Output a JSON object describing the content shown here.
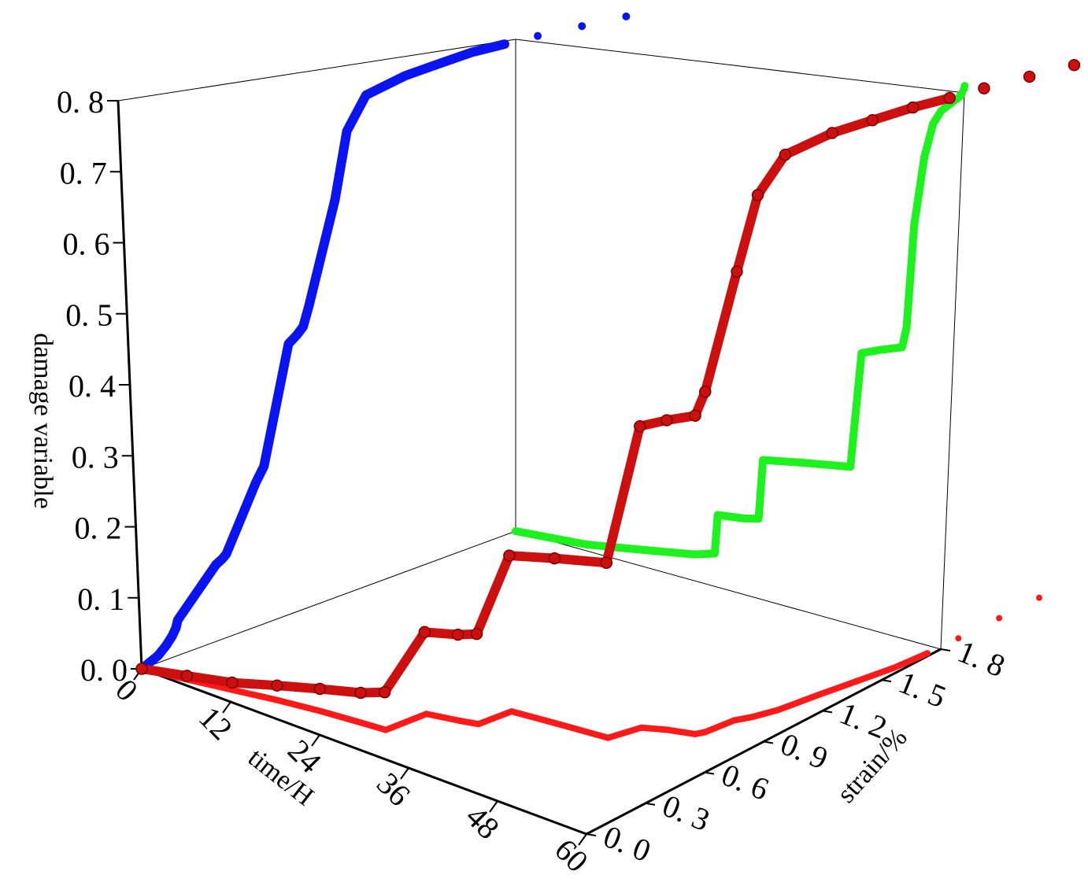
{
  "chart_data": {
    "type": "scatter3d",
    "x_label": "time/H",
    "y_label": "strain/%",
    "z_label": "damage variable",
    "x": [
      0,
      5,
      10,
      15,
      20,
      25,
      28,
      28.3,
      32,
      34,
      34.4,
      40,
      46.5,
      47.5,
      50,
      53,
      53.5,
      54,
      55,
      56,
      57,
      58,
      59,
      59.5,
      59.7,
      59.9,
      60
    ],
    "y": [
      0,
      0.04,
      0.08,
      0.12,
      0.15,
      0.17,
      0.18,
      0.37,
      0.4,
      0.42,
      0.57,
      0.59,
      0.61,
      0.74,
      0.78,
      0.81,
      0.84,
      0.97,
      1.03,
      1.12,
      1.3,
      1.45,
      1.6,
      1.75,
      1.9,
      2.1,
      2.3
    ],
    "z": [
      0,
      0.005,
      0.01,
      0.02,
      0.03,
      0.04,
      0.05,
      0.11,
      0.115,
      0.12,
      0.21,
      0.22,
      0.23,
      0.4,
      0.41,
      0.42,
      0.45,
      0.6,
      0.7,
      0.75,
      0.77,
      0.78,
      0.79,
      0.795,
      0.8,
      0.805,
      0.81
    ],
    "xlim": [
      0,
      60
    ],
    "ylim": [
      0,
      1.8
    ],
    "zlim": [
      0,
      0.8
    ],
    "xticks": [
      0,
      12,
      24,
      36,
      48,
      60
    ],
    "yticks": [
      {
        "value": 0,
        "label": "0. 0"
      },
      {
        "value": 0.3,
        "label": "0. 3"
      },
      {
        "value": 0.6,
        "label": "0. 6"
      },
      {
        "value": 0.9,
        "label": "0. 9"
      },
      {
        "value": 1.2,
        "label": "1. 2"
      },
      {
        "value": 1.5,
        "label": "1. 5"
      },
      {
        "value": 1.8,
        "label": "1. 8"
      }
    ],
    "zticks": [
      {
        "value": 0,
        "label": "0. 0"
      },
      {
        "value": 0.1,
        "label": "0. 1"
      },
      {
        "value": 0.2,
        "label": "0. 2"
      },
      {
        "value": 0.3,
        "label": "0. 3"
      },
      {
        "value": 0.4,
        "label": "0. 4"
      },
      {
        "value": 0.5,
        "label": "0. 5"
      },
      {
        "value": 0.6,
        "label": "0. 6"
      },
      {
        "value": 0.7,
        "label": "0. 7"
      },
      {
        "value": 0.8,
        "label": "0. 8"
      }
    ],
    "colors": {
      "curve": "#cc1010",
      "time_strain": "#ff1a1a",
      "strain_damage": "#0a14f0",
      "time_damage": "#1ef21e"
    }
  }
}
